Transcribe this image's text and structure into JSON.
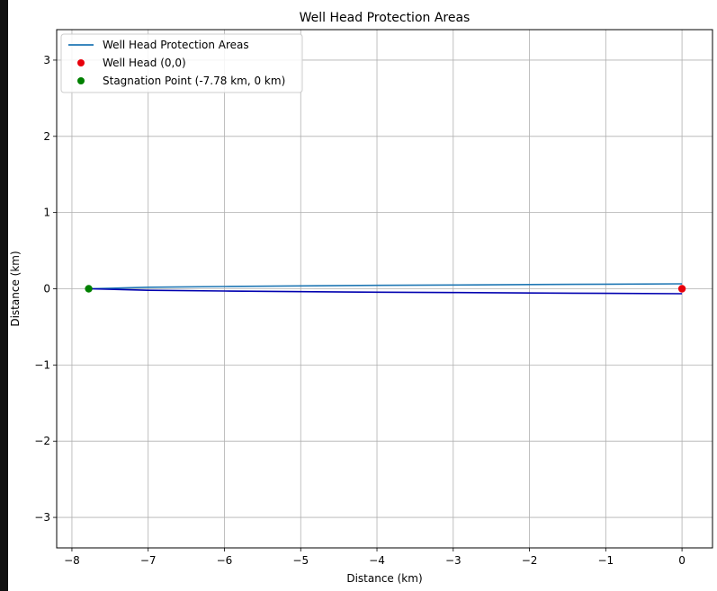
{
  "chart_data": {
    "type": "line",
    "title": "Well Head Protection Areas",
    "xlabel": "Distance (km)",
    "ylabel": "Distance (km)",
    "xlim": [
      -8.2,
      0.4
    ],
    "ylim": [
      -3.4,
      3.4
    ],
    "xticks": [
      -8,
      -7,
      -6,
      -5,
      -4,
      -3,
      -2,
      -1,
      0
    ],
    "yticks": [
      -3,
      -2,
      -1,
      0,
      1,
      2,
      3
    ],
    "xtick_labels": [
      "−8",
      "−7",
      "−6",
      "−5",
      "−4",
      "−3",
      "−2",
      "−1",
      "0"
    ],
    "ytick_labels": [
      "−3",
      "−2",
      "−1",
      "0",
      "1",
      "2",
      "3"
    ],
    "grid": true,
    "legend_position": "top-left",
    "series": [
      {
        "name": "Well Head Protection Areas",
        "type": "line",
        "color": "#1f77b4",
        "x": [
          -7.78,
          -7.0,
          -6.0,
          -5.0,
          -4.0,
          -3.0,
          -2.0,
          -1.0,
          0.0
        ],
        "y": [
          0.0,
          0.02,
          0.03,
          0.038,
          0.045,
          0.05,
          0.055,
          0.06,
          0.065
        ]
      },
      {
        "name": "",
        "type": "line",
        "color": "#0000b0",
        "x": [
          -7.78,
          -7.0,
          -6.0,
          -5.0,
          -4.0,
          -3.0,
          -2.0,
          -1.0,
          0.0
        ],
        "y": [
          0.0,
          -0.02,
          -0.03,
          -0.038,
          -0.045,
          -0.05,
          -0.055,
          -0.06,
          -0.065
        ]
      },
      {
        "name": "Well Head (0,0)",
        "type": "scatter",
        "color": "#e8000b",
        "x": [
          0.0
        ],
        "y": [
          0.0
        ]
      },
      {
        "name": "Stagnation Point (-7.78 km, 0 km)",
        "type": "scatter",
        "color": "#008000",
        "x": [
          -7.78
        ],
        "y": [
          0.0
        ]
      }
    ]
  }
}
